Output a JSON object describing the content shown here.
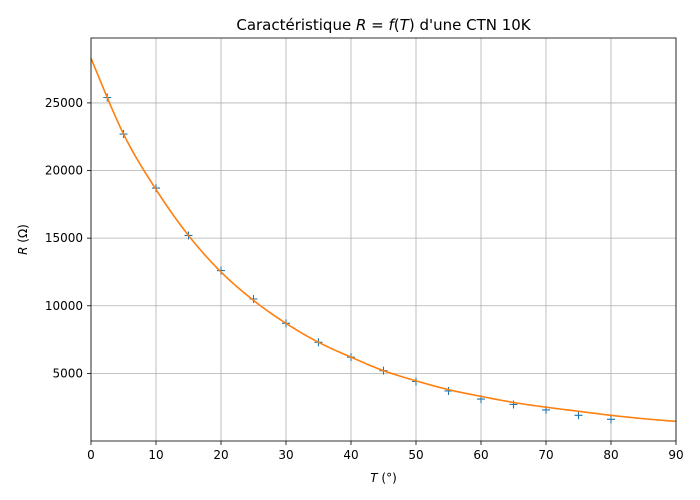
{
  "chart_data": {
    "type": "scatter",
    "title": "Caractéristique R = f(T) d'une CTN 10K",
    "title_parts": {
      "prefix": "Caractéristique ",
      "formula_r": "R",
      "formula_eq": " = ",
      "formula_f": "f",
      "formula_open": "(",
      "formula_t": "T",
      "formula_close": ")",
      "suffix": " d'une CTN 10K"
    },
    "xlabel": "T (°)",
    "xlabel_parts": {
      "var": "T",
      "unit": " (°)"
    },
    "ylabel": "R (Ω)",
    "ylabel_parts": {
      "var": "R",
      "unit": " (Ω)"
    },
    "xlim": [
      0,
      90
    ],
    "ylim": [
      0,
      29800
    ],
    "x_ticks": [
      0,
      10,
      20,
      30,
      40,
      50,
      60,
      70,
      80,
      90
    ],
    "y_ticks": [
      5000,
      10000,
      15000,
      20000,
      25000
    ],
    "grid": true,
    "series": [
      {
        "kind": "markers",
        "marker": "+",
        "color": "#1f77b4",
        "x": [
          2.5,
          5,
          10,
          15,
          20,
          25,
          30,
          35,
          40,
          45,
          50,
          55,
          60,
          65,
          70,
          75,
          80
        ],
        "y": [
          25400,
          22700,
          18700,
          15200,
          12600,
          10500,
          8700,
          7300,
          6200,
          5200,
          4400,
          3700,
          3100,
          2700,
          2300,
          1900,
          1600
        ]
      },
      {
        "kind": "line",
        "color": "#ff7f0e",
        "x": [
          0,
          5,
          10,
          15,
          20,
          25,
          30,
          35,
          40,
          45,
          50,
          55,
          60,
          65,
          70,
          75,
          80,
          85,
          90
        ],
        "y": [
          28300,
          22700,
          18600,
          15200,
          12500,
          10400,
          8700,
          7300,
          6200,
          5200,
          4450,
          3800,
          3300,
          2850,
          2500,
          2200,
          1900,
          1650,
          1450
        ]
      }
    ]
  }
}
